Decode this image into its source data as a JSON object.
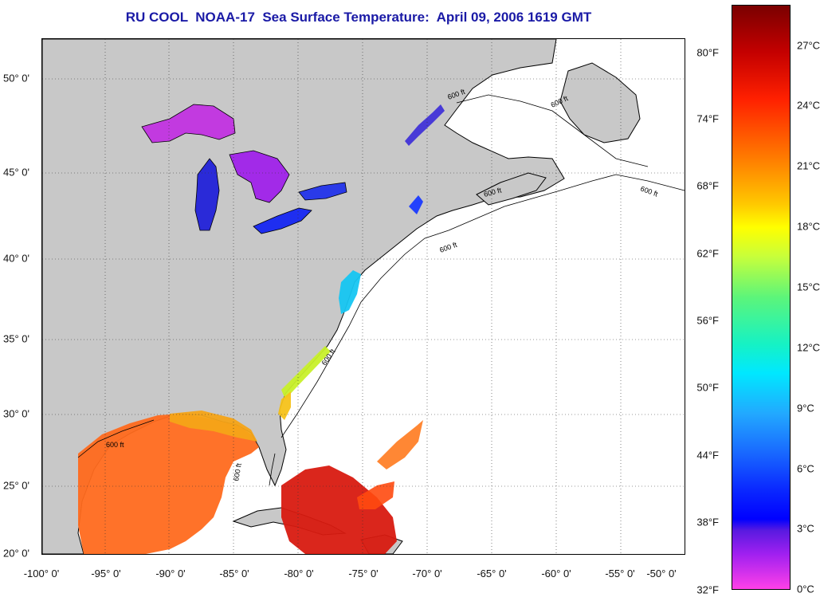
{
  "title": "RU COOL  NOAA-17  Sea Surface Temperature:  April 09, 2006 1619 GMT",
  "map": {
    "lon_range": [
      -100,
      -50
    ],
    "lat_range": [
      20,
      52.5
    ],
    "lon_ticks": [
      "-100° 0'",
      "-95° 0'",
      "-90° 0'",
      "-85° 0'",
      "-80° 0'",
      "-75° 0'",
      "-70° 0'",
      "-65° 0'",
      "-60° 0'",
      "-55° 0'",
      "-50° 0'"
    ],
    "lat_ticks": [
      "20° 0'",
      "25° 0'",
      "30° 0'",
      "35° 0'",
      "40° 0'",
      "45° 0'",
      "50° 0'"
    ],
    "contour_labels": [
      "600 ft",
      "600 ft",
      "600 ft",
      "600 ft",
      "600 ft",
      "600 ft",
      "600 ft",
      "600 ft"
    ],
    "colors": {
      "land": "#c8c8c8",
      "no_data": "#ffffff",
      "coast": "#000000"
    }
  },
  "colorbar": {
    "fahrenheit": [
      "80°F",
      "74°F",
      "68°F",
      "62°F",
      "56°F",
      "50°F",
      "44°F",
      "38°F",
      "32°F"
    ],
    "celsius": [
      "27°C",
      "24°C",
      "21°C",
      "18°C",
      "15°C",
      "12°C",
      "9°C",
      "6°C",
      "3°C",
      "0°C"
    ]
  }
}
